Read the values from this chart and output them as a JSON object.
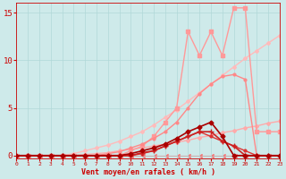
{
  "xlabel": "Vent moyen/en rafales ( km/h )",
  "xlim": [
    0,
    23
  ],
  "ylim": [
    -0.3,
    16
  ],
  "yticks": [
    0,
    5,
    10,
    15
  ],
  "xticks": [
    0,
    1,
    2,
    3,
    4,
    5,
    6,
    7,
    8,
    9,
    10,
    11,
    12,
    13,
    14,
    15,
    16,
    17,
    18,
    19,
    20,
    21,
    22,
    23
  ],
  "bg_color": "#ceeaea",
  "grid_color": "#b0d8d8",
  "lines": [
    {
      "x": [
        0,
        1,
        2,
        3,
        4,
        5,
        6,
        7,
        8,
        9,
        10,
        11,
        12,
        13,
        14,
        15,
        16,
        17,
        18,
        19,
        20,
        21,
        22,
        23
      ],
      "y": [
        0,
        0,
        0,
        0,
        0,
        0,
        0,
        0,
        0,
        0,
        0,
        0,
        0,
        0,
        0,
        0,
        0,
        0,
        0,
        0,
        0,
        0,
        0,
        0
      ],
      "color": "#ff6666",
      "lw": 0.8,
      "marker": 4,
      "ms": 3,
      "zorder": 1
    },
    {
      "x": [
        0,
        1,
        2,
        3,
        4,
        5,
        6,
        7,
        8,
        9,
        10,
        11,
        12,
        13,
        14,
        15,
        16,
        17,
        18,
        19,
        20,
        21,
        22,
        23
      ],
      "y": [
        0,
        0,
        0,
        0,
        0,
        0,
        0.1,
        0.2,
        0.3,
        0.5,
        0.65,
        0.8,
        1.0,
        1.2,
        1.4,
        1.6,
        1.9,
        2.1,
        2.4,
        2.6,
        2.9,
        3.1,
        3.4,
        3.6
      ],
      "color": "#ffaaaa",
      "lw": 1.0,
      "marker": "D",
      "ms": 2,
      "zorder": 2
    },
    {
      "x": [
        0,
        1,
        2,
        3,
        4,
        5,
        6,
        7,
        8,
        9,
        10,
        11,
        12,
        13,
        14,
        15,
        16,
        17,
        18,
        19,
        20,
        21,
        22,
        23
      ],
      "y": [
        0,
        0,
        0,
        0,
        0,
        0.2,
        0.5,
        0.8,
        1.1,
        1.5,
        2.0,
        2.5,
        3.2,
        4.0,
        4.8,
        5.7,
        6.6,
        7.5,
        8.4,
        9.3,
        10.2,
        11.0,
        11.8,
        12.6
      ],
      "color": "#ffbbbb",
      "lw": 1.0,
      "marker": "D",
      "ms": 2,
      "zorder": 2
    },
    {
      "comment": "light pink jagged line - peaks at x=15 ~13, x=16 ~10.5, x=17 ~13, x=19 ~15",
      "x": [
        0,
        1,
        2,
        3,
        4,
        5,
        6,
        7,
        8,
        9,
        10,
        11,
        12,
        13,
        14,
        15,
        16,
        17,
        18,
        19,
        20,
        21,
        22,
        23
      ],
      "y": [
        0,
        0,
        0,
        0,
        0,
        0,
        0,
        0,
        0,
        0,
        0.5,
        1.0,
        2.0,
        3.5,
        5.0,
        13.0,
        10.5,
        13.0,
        10.5,
        15.5,
        15.5,
        2.5,
        2.5,
        2.5
      ],
      "color": "#ff9999",
      "lw": 1.0,
      "marker": "s",
      "ms": 2.5,
      "zorder": 2
    },
    {
      "x": [
        0,
        1,
        2,
        3,
        4,
        5,
        6,
        7,
        8,
        9,
        10,
        11,
        12,
        13,
        14,
        15,
        16,
        17,
        18,
        19,
        20,
        21,
        22,
        23
      ],
      "y": [
        0,
        0,
        0,
        0,
        0,
        0,
        0,
        0,
        0.2,
        0.4,
        0.8,
        1.2,
        1.8,
        2.5,
        3.5,
        5.0,
        6.5,
        7.5,
        8.3,
        8.5,
        8.0,
        0,
        0,
        0
      ],
      "color": "#ff8888",
      "lw": 1.0,
      "marker": "o",
      "ms": 2,
      "zorder": 2
    },
    {
      "x": [
        0,
        1,
        2,
        3,
        4,
        5,
        6,
        7,
        8,
        9,
        10,
        11,
        12,
        13,
        14,
        15,
        16,
        17,
        18,
        19,
        20,
        21,
        22,
        23
      ],
      "y": [
        0,
        0,
        0,
        0,
        0,
        0,
        0,
        0,
        0,
        0,
        0,
        0.3,
        0.5,
        1.0,
        1.5,
        2.0,
        2.5,
        2.5,
        1.5,
        1.0,
        0,
        0,
        0,
        0
      ],
      "color": "#cc2222",
      "lw": 1.2,
      "marker": "+",
      "ms": 4,
      "zorder": 4
    },
    {
      "x": [
        0,
        1,
        2,
        3,
        4,
        5,
        6,
        7,
        8,
        9,
        10,
        11,
        12,
        13,
        14,
        15,
        16,
        17,
        18,
        19,
        20,
        21,
        22,
        23
      ],
      "y": [
        0,
        0,
        0,
        0,
        0,
        0,
        0,
        0,
        0,
        0,
        0.2,
        0.5,
        0.8,
        1.2,
        1.8,
        2.5,
        3.0,
        3.5,
        2.0,
        0,
        0,
        0,
        0,
        0
      ],
      "color": "#aa0000",
      "lw": 1.2,
      "marker": "D",
      "ms": 2.5,
      "zorder": 5
    },
    {
      "x": [
        0,
        1,
        2,
        3,
        4,
        5,
        6,
        7,
        8,
        9,
        10,
        11,
        12,
        13,
        14,
        15,
        16,
        17,
        18,
        19,
        20,
        21,
        22,
        23
      ],
      "y": [
        0,
        0,
        0,
        0,
        0,
        0,
        0,
        0,
        0,
        0,
        0,
        0.2,
        0.5,
        1.0,
        1.5,
        2.0,
        2.5,
        2.0,
        1.5,
        1.0,
        0.5,
        0,
        0,
        0
      ],
      "color": "#dd3333",
      "lw": 1.0,
      "marker": "o",
      "ms": 2,
      "zorder": 3
    }
  ]
}
